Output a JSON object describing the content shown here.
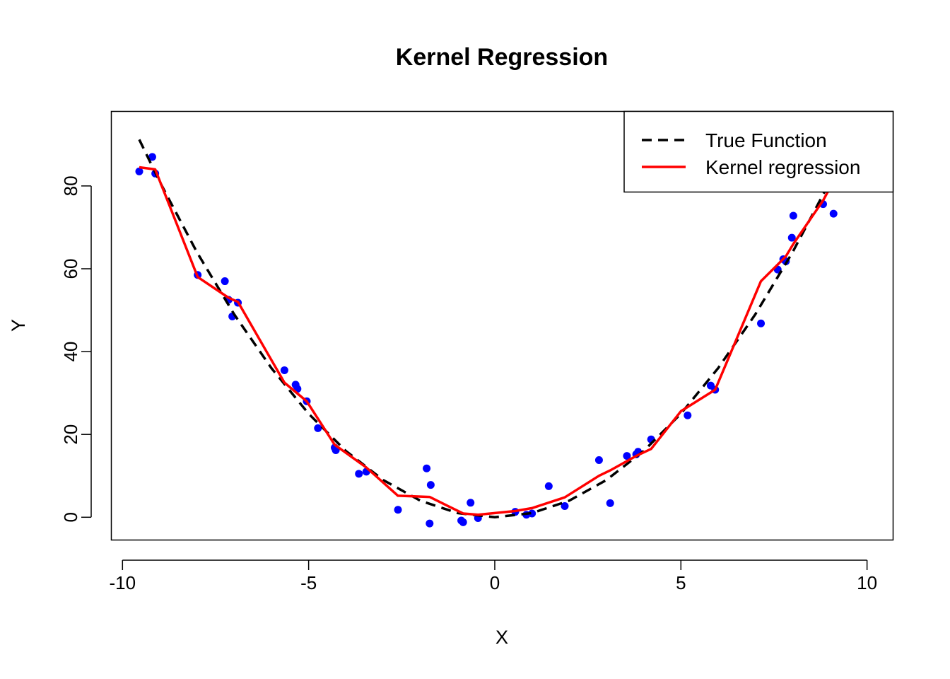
{
  "chart_data": {
    "type": "scatter",
    "title": "Kernel Regression",
    "xlabel": "X",
    "ylabel": "Y",
    "xlim": [
      -10.3,
      10.7
    ],
    "ylim": [
      -5.5,
      98
    ],
    "xticks": [
      -10,
      -5,
      0,
      5,
      10
    ],
    "yticks": [
      0,
      20,
      40,
      60,
      80
    ],
    "xtick_labels": [
      "-10",
      "-5",
      "0",
      "5",
      "10"
    ],
    "ytick_labels": [
      "0",
      "20",
      "40",
      "60",
      "80"
    ],
    "grid": false,
    "legend": {
      "position": "top-right",
      "entries": [
        {
          "label": "True Function",
          "style": "dashed",
          "color": "#000000"
        },
        {
          "label": "Kernel regression",
          "style": "solid",
          "color": "#ff0000"
        }
      ]
    },
    "points": {
      "color": "#0000ff",
      "x": [
        -9.55,
        -9.2,
        -9.12,
        -7.98,
        -7.25,
        -7.15,
        -7.05,
        -6.9,
        -5.65,
        -5.35,
        -5.3,
        -5.05,
        -4.75,
        -4.3,
        -4.27,
        -3.65,
        -3.45,
        -2.6,
        -1.83,
        -1.75,
        -1.72,
        -0.9,
        -0.85,
        -0.65,
        -0.45,
        0.55,
        0.85,
        1.0,
        1.45,
        1.88,
        2.8,
        3.1,
        3.55,
        3.8,
        3.85,
        4.2,
        5.18,
        5.8,
        5.92,
        7.15,
        7.6,
        7.75,
        7.82,
        7.98,
        8.02,
        8.82,
        9.1
      ],
      "y": [
        83.5,
        87.0,
        83.0,
        58.5,
        57.0,
        52.5,
        48.5,
        51.8,
        35.5,
        32.0,
        31.0,
        28.0,
        21.5,
        16.8,
        16.2,
        10.5,
        11.0,
        1.8,
        11.8,
        -1.5,
        7.8,
        -0.8,
        -1.2,
        3.5,
        -0.2,
        1.3,
        0.6,
        0.9,
        7.5,
        2.7,
        13.8,
        3.4,
        14.8,
        15.2,
        15.8,
        18.8,
        24.6,
        31.8,
        30.8,
        46.8,
        59.8,
        62.3,
        61.8,
        67.5,
        72.8,
        75.6,
        73.3
      ]
    },
    "series": [
      {
        "name": "True Function",
        "color": "#000000",
        "x": [
          -9.55,
          -9.0,
          -8.0,
          -7.0,
          -6.0,
          -5.0,
          -4.0,
          -3.0,
          -2.0,
          -1.0,
          0.0,
          1.0,
          2.0,
          3.0,
          4.0,
          5.0,
          6.0,
          7.0,
          8.0,
          9.0
        ],
        "y": [
          91.2,
          81.0,
          64.0,
          49.0,
          36.0,
          25.0,
          16.0,
          9.0,
          4.0,
          1.0,
          0.0,
          1.0,
          4.0,
          9.0,
          16.0,
          25.0,
          36.0,
          49.0,
          64.0,
          81.0
        ]
      },
      {
        "name": "Kernel regression",
        "color": "#ff0000",
        "x": [
          -9.55,
          -9.12,
          -7.98,
          -7.15,
          -6.9,
          -5.65,
          -5.05,
          -4.3,
          -3.45,
          -2.6,
          -1.75,
          -0.85,
          -0.45,
          0.55,
          1.0,
          1.88,
          2.8,
          3.1,
          3.8,
          4.2,
          5.0,
          5.92,
          7.15,
          7.6,
          7.82,
          8.02,
          8.82,
          9.0
        ],
        "y": [
          84.5,
          84.0,
          58.0,
          53.0,
          52.0,
          32.5,
          28.0,
          17.5,
          12.0,
          5.2,
          4.9,
          0.9,
          0.6,
          1.5,
          2.2,
          4.8,
          10.0,
          11.3,
          14.8,
          16.5,
          25.6,
          30.8,
          57.0,
          61.0,
          63.0,
          66.0,
          76.5,
          79.5
        ]
      }
    ]
  }
}
